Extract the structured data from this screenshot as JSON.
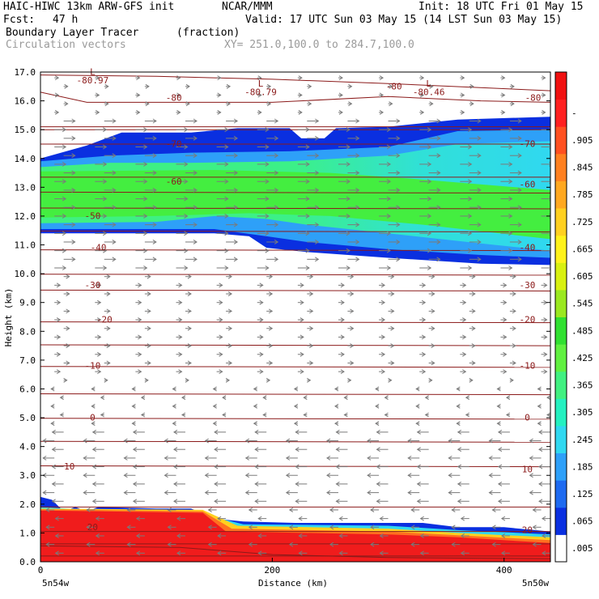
{
  "header": {
    "title_left": "HAIC-HIWC 13km ARW-GFS init",
    "org": "NCAR/MMM",
    "init": "Init: 18 UTC Fri 01 May 15",
    "fcst_label": "Fcst:",
    "fcst_value": "47 h",
    "valid": "Valid: 17 UTC Sun 03 May 15 (14 LST Sun 03 May 15)",
    "field_name": "Boundary Layer Tracer",
    "field_units": "(fraction)",
    "vector_name": "Circulation vectors",
    "xy_range": "XY= 251.0,100.0 to 284.7,100.0"
  },
  "chart_data": {
    "type": "heatmap",
    "ylabel": "Height (km)",
    "xlabel": "Distance (km)",
    "x_left_label": "5n54w",
    "x_right_label": "5n50w",
    "xlim": [
      0,
      440
    ],
    "ylim": [
      0,
      17
    ],
    "x_ticks": [
      0,
      200,
      400
    ],
    "y_ticks": [
      "0.0",
      "1.0",
      "2.0",
      "3.0",
      "4.0",
      "5.0",
      "6.0",
      "7.0",
      "8.0",
      "9.0",
      "10.0",
      "11.0",
      "12.0",
      "13.0",
      "14.0",
      "15.0",
      "16.0",
      "17.0"
    ],
    "colorbar_labels": [
      ".005",
      ".065",
      ".125",
      ".185",
      ".245",
      ".305",
      ".365",
      ".425",
      ".485",
      ".545",
      ".605",
      ".665",
      ".725",
      ".785",
      ".845",
      ".905",
      "-"
    ],
    "colorbar_colors": [
      "#ffffff",
      "#0a2fe0",
      "#1e6af0",
      "#2ea0f8",
      "#30d8f0",
      "#24f0c0",
      "#40f080",
      "#60f040",
      "#30e030",
      "#9ae820",
      "#d8f010",
      "#fff21a",
      "#ffd020",
      "#ffa820",
      "#ff8020",
      "#ff5020",
      "#ff2020",
      "#f01010"
    ],
    "contour_color": "#8b1a1a",
    "contour_labels": [
      {
        "value": "-80.97",
        "x": 45,
        "y": 16.6
      },
      {
        "value": "L",
        "x": 45,
        "y": 16.9
      },
      {
        "value": "-80.79",
        "x": 190,
        "y": 16.2
      },
      {
        "value": "L",
        "x": 190,
        "y": 16.5
      },
      {
        "value": "-80.46",
        "x": 335,
        "y": 16.2
      },
      {
        "value": "L",
        "x": 335,
        "y": 16.5
      },
      {
        "value": "-80",
        "x": 115,
        "y": 16.0
      },
      {
        "value": "-80",
        "x": 305,
        "y": 16.4
      },
      {
        "value": "-80",
        "x": 425,
        "y": 16.0
      },
      {
        "value": "-70",
        "x": 115,
        "y": 14.4
      },
      {
        "value": "-70",
        "x": 420,
        "y": 14.4
      },
      {
        "value": "-60",
        "x": 115,
        "y": 13.1
      },
      {
        "value": "-60",
        "x": 420,
        "y": 13.0
      },
      {
        "value": "-50",
        "x": 45,
        "y": 11.9
      },
      {
        "value": "-40",
        "x": 50,
        "y": 10.8
      },
      {
        "value": "-40",
        "x": 420,
        "y": 10.8
      },
      {
        "value": "-30",
        "x": 45,
        "y": 9.5
      },
      {
        "value": "-30",
        "x": 420,
        "y": 9.5
      },
      {
        "value": "-20",
        "x": 55,
        "y": 8.3
      },
      {
        "value": "-20",
        "x": 420,
        "y": 8.3
      },
      {
        "value": "-10",
        "x": 45,
        "y": 6.7
      },
      {
        "value": "-10",
        "x": 420,
        "y": 6.7
      },
      {
        "value": "0",
        "x": 45,
        "y": 4.9
      },
      {
        "value": "0",
        "x": 420,
        "y": 4.9
      },
      {
        "value": "10",
        "x": 25,
        "y": 3.2
      },
      {
        "value": "10",
        "x": 420,
        "y": 3.1
      },
      {
        "value": "20",
        "x": 45,
        "y": 1.1
      },
      {
        "value": "20",
        "x": 420,
        "y": 1.0
      }
    ]
  }
}
